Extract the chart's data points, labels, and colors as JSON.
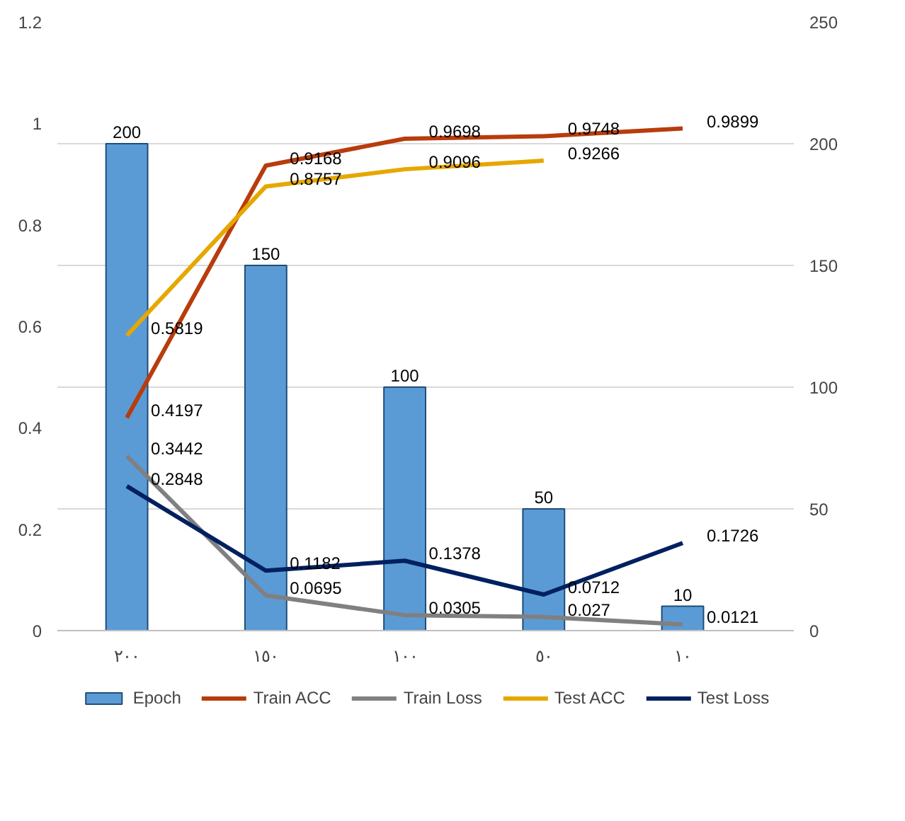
{
  "chart_data": {
    "type": "bar",
    "categories": [
      "٢٠٠",
      "١٥٠",
      "١٠٠",
      "٥٠",
      "١٠"
    ],
    "series": [
      {
        "name": "Epoch",
        "axis": "y2",
        "color": "#5b9bd5",
        "values": [
          200,
          150,
          100,
          50,
          10
        ]
      },
      {
        "name": "Train ACC",
        "type": "line",
        "color": "#b83c0c",
        "values": [
          0.4197,
          0.9168,
          0.9698,
          0.9748,
          0.9899
        ]
      },
      {
        "name": "Train Loss",
        "type": "line",
        "color": "#808080",
        "values": [
          0.3442,
          0.0695,
          0.0305,
          0.027,
          0.0121
        ]
      },
      {
        "name": "Test ACC",
        "type": "line",
        "color": "#e6a700",
        "values": [
          0.5819,
          0.8757,
          0.9096,
          0.9266,
          null
        ]
      },
      {
        "name": "Test Loss",
        "type": "line",
        "color": "#002060",
        "values": [
          0.2848,
          0.1182,
          0.1378,
          0.0712,
          0.1726
        ]
      }
    ],
    "ylim": [
      0,
      1.2
    ],
    "yticks": [
      0,
      0.2,
      0.4,
      0.6,
      0.8,
      1,
      1.2
    ],
    "y2lim": [
      0,
      250
    ],
    "y2ticks": [
      0,
      50,
      100,
      150,
      200,
      250
    ],
    "grid": "y",
    "legend": "bottom",
    "data_labels": true
  }
}
